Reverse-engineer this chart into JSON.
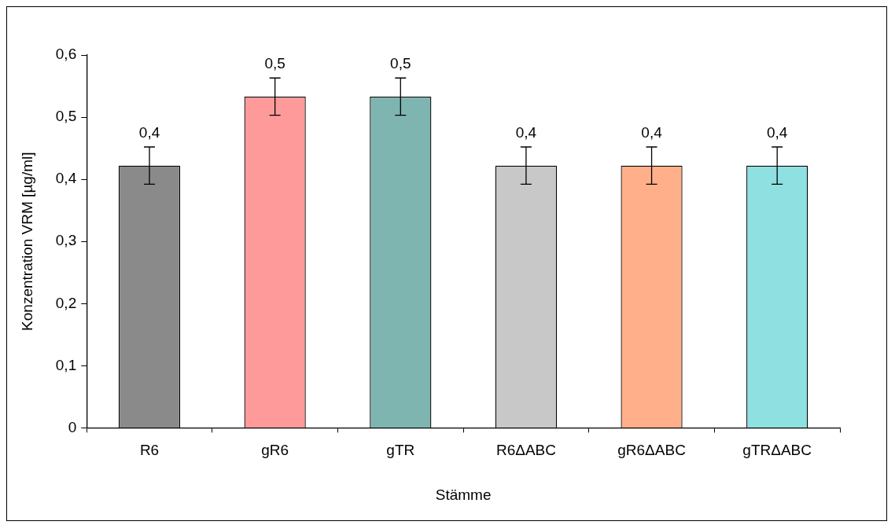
{
  "chart_data": {
    "type": "bar",
    "xlabel": "Stämme",
    "ylabel": "Konzentration VRM [µg/ml]",
    "categories": [
      "R6",
      "gR6",
      "gTR",
      "R6ΔABC",
      "gR6ΔABC",
      "gTRΔABC"
    ],
    "values": [
      0.422,
      0.533,
      0.533,
      0.422,
      0.422,
      0.422
    ],
    "errors": [
      0.03,
      0.03,
      0.03,
      0.03,
      0.03,
      0.03
    ],
    "value_labels": [
      "0,4",
      "0,5",
      "0,5",
      "0,4",
      "0,4",
      "0,4"
    ],
    "colors": [
      "#8a8a8a",
      "#ff9a9a",
      "#7fb5b0",
      "#c8c8c8",
      "#ffb08a",
      "#8fe0e0"
    ],
    "ylim": [
      0,
      0.6
    ],
    "yticks": [
      0,
      {
        "value": 0.1,
        "label": "0,1"
      },
      {
        "value": 0.2,
        "label": "0,2"
      },
      {
        "value": 0.3,
        "label": "0,3"
      },
      {
        "value": 0.4,
        "label": "0,4"
      },
      {
        "value": 0.5,
        "label": "0,5"
      },
      {
        "value": 0.6,
        "label": "0,6"
      }
    ]
  }
}
